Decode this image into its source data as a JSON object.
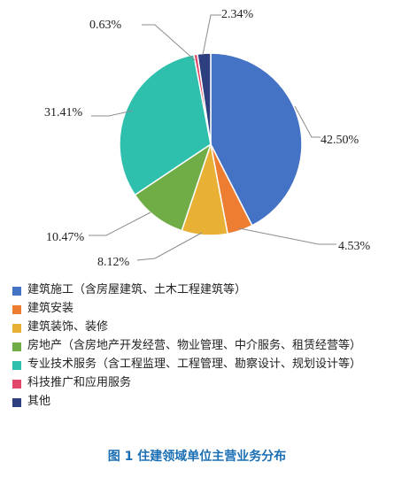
{
  "chart_data": {
    "type": "pie",
    "title": "",
    "categories": [
      "建筑施工（含房屋建筑、土木工程建筑等）",
      "建筑安装",
      "建筑装饰、装修",
      "房地产（含房地产开发经营、物业管理、中介服务、租赁经营等）",
      "专业技术服务（含工程监理、工程管理、勘察设计、规划设计等）",
      "科技推广和应用服务",
      "其他"
    ],
    "values": [
      42.5,
      4.53,
      8.12,
      10.47,
      31.41,
      0.63,
      2.34
    ],
    "value_labels": [
      "42.50%",
      "4.53%",
      "8.12%",
      "10.47%",
      "31.41%",
      "0.63%",
      "2.34%"
    ],
    "colors": [
      "#4472c4",
      "#ed7d31",
      "#e8b135",
      "#70ad47",
      "#2fbfad",
      "#e0476a",
      "#2e3f7f"
    ],
    "legend_placement": "bottom"
  },
  "caption": "图 1   住建领域单位主营业务分布"
}
